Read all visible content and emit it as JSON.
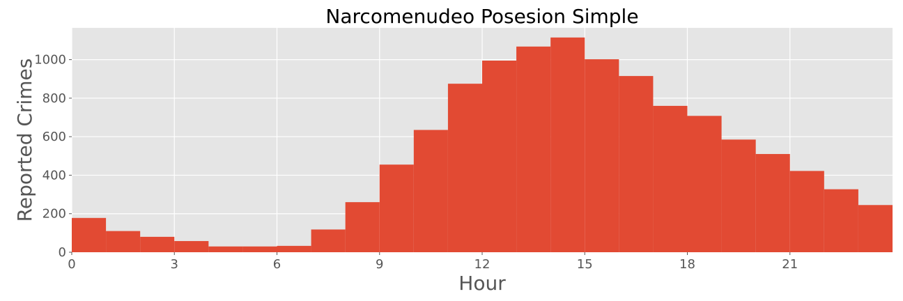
{
  "chart_data": {
    "type": "bar",
    "title": "Narcomenudeo Posesion Simple",
    "xlabel": "Hour",
    "ylabel": "Reported Crimes",
    "x": [
      0,
      1,
      2,
      3,
      4,
      5,
      6,
      7,
      8,
      9,
      10,
      11,
      12,
      13,
      14,
      15,
      16,
      17,
      18,
      19,
      20,
      21,
      22,
      23
    ],
    "values": [
      178,
      110,
      80,
      58,
      30,
      30,
      33,
      118,
      260,
      455,
      635,
      875,
      995,
      1068,
      1115,
      1002,
      915,
      760,
      708,
      585,
      510,
      422,
      327,
      245
    ],
    "xlim": [
      0,
      24
    ],
    "ylim": [
      0,
      1165
    ],
    "xticks": [
      0,
      3,
      6,
      9,
      12,
      15,
      18,
      21
    ],
    "yticks": [
      0,
      200,
      400,
      600,
      800,
      1000
    ],
    "grid": true,
    "style": "ggplot",
    "colors": {
      "bar": "#E24A33",
      "plot_background": "#E5E5E5",
      "grid": "#FFFFFF",
      "text": "#555555"
    }
  }
}
